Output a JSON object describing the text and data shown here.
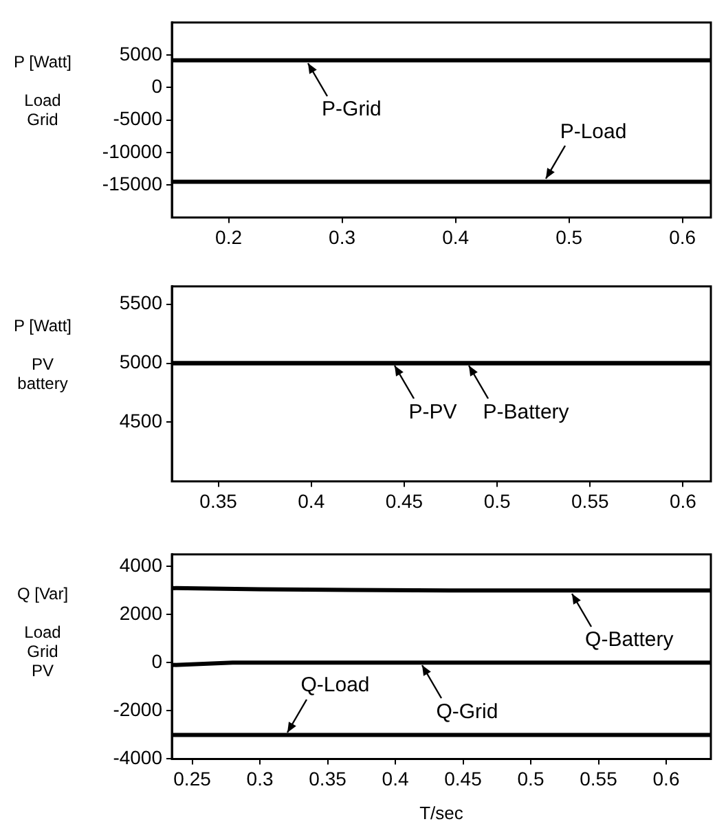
{
  "chart_data": [
    {
      "type": "line",
      "ylabel": "P [Watt]\n\nLoad\nGrid",
      "xlim": [
        0.15,
        0.625
      ],
      "xticks": [
        0.2,
        0.3,
        0.4,
        0.5,
        0.6
      ],
      "ylim": [
        -20000,
        10000
      ],
      "yticks": [
        -15000,
        -10000,
        -5000,
        0,
        5000
      ],
      "grid": false,
      "legend": false,
      "marker": "none",
      "line_style": "solid",
      "series": [
        {
          "color": "#000000",
          "x": [
            0.15,
            0.625
          ],
          "values": [
            4200,
            4200
          ]
        },
        {
          "color": "#000000",
          "x": [
            0.15,
            0.625
          ],
          "values": [
            -14500,
            -14500
          ]
        }
      ],
      "annotations": [
        {
          "text": "P-Grid",
          "x": 0.27,
          "y": 4200
        },
        {
          "text": "P-Load",
          "x": 0.48,
          "y": -14500
        }
      ]
    },
    {
      "type": "line",
      "ylabel": "P [Watt]\n\nPV\nbattery",
      "xlim": [
        0.325,
        0.615
      ],
      "xticks": [
        0.35,
        0.4,
        0.45,
        0.5,
        0.55,
        0.6
      ],
      "ylim": [
        4000,
        5650
      ],
      "yticks": [
        4500,
        5000,
        5500
      ],
      "grid": false,
      "legend": false,
      "marker": "none",
      "line_style": "solid",
      "series": [
        {
          "color": "#000000",
          "x": [
            0.325,
            0.615
          ],
          "values": [
            5000,
            5000
          ]
        },
        {
          "color": "#000000",
          "x": [
            0.325,
            0.615
          ],
          "values": [
            5000,
            5000
          ]
        }
      ],
      "annotations": [
        {
          "text": "P-PV",
          "x": 0.445,
          "y": 5000
        },
        {
          "text": "P-Battery",
          "x": 0.485,
          "y": 5000
        }
      ]
    },
    {
      "type": "line",
      "ylabel": "Q [Var]\n\nLoad\nGrid\nPV",
      "xlabel": "T/sec",
      "xlim": [
        0.235,
        0.633
      ],
      "xticks": [
        0.25,
        0.3,
        0.35,
        0.4,
        0.45,
        0.5,
        0.55,
        0.6
      ],
      "ylim": [
        -4000,
        4500
      ],
      "yticks": [
        -4000,
        -2000,
        0,
        2000,
        4000
      ],
      "grid": false,
      "legend": false,
      "marker": "none",
      "line_style": "solid",
      "series": [
        {
          "color": "#000000",
          "x": [
            0.235,
            0.3,
            0.44,
            0.633
          ],
          "values": [
            3100,
            3050,
            3000,
            3000
          ]
        },
        {
          "color": "#000000",
          "x": [
            0.235,
            0.28,
            0.633
          ],
          "values": [
            -100,
            0,
            0
          ]
        },
        {
          "color": "#000000",
          "x": [
            0.235,
            0.633
          ],
          "values": [
            -3000,
            -3000
          ]
        }
      ],
      "annotations": [
        {
          "text": "Q-Battery",
          "x": 0.53,
          "y": 3000
        },
        {
          "text": "Q-Grid",
          "x": 0.42,
          "y": 0
        },
        {
          "text": "Q-Load",
          "x": 0.32,
          "y": -3000
        }
      ]
    }
  ]
}
